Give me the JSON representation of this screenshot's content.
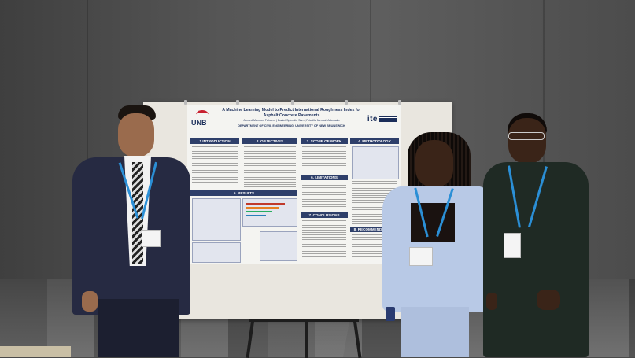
{
  "scene": {
    "description_colors": {
      "wall": "#575757",
      "board": "#e9e6df",
      "suit_navy": "#262a42",
      "suit_light_blue": "#b8c9e6",
      "dress_dark_green": "#1f2a24",
      "lanyard": "#2b8fd6",
      "poster_accent": "#2e3f6a"
    }
  },
  "poster": {
    "logo_left": "UNB",
    "logo_right": "ite",
    "title": "A Machine Learning Model to Predict International Roughness Index for Asphalt Concrete Pavements",
    "authors": "Ahmed Mamoon Faheem | Daniel Splendid Sam | Priscilla Mensah Adomako",
    "department": "DEPARTMENT OF CIVIL ENGINEERING, UNIVERSITY OF NEW BRUNSWICK",
    "sections": {
      "introduction": "1.INTRODUCTION",
      "objectives": "2. OBJECTIVES",
      "scope": "3. SCOPE OF WORK",
      "methodology": "4. METHODOLOGY",
      "results": "5. RESULTS",
      "limitations": "6. LIMITATIONS",
      "conclusions": "7. CONCLUSIONS",
      "recommendations": "8. RECOMMENDATIONS"
    }
  }
}
